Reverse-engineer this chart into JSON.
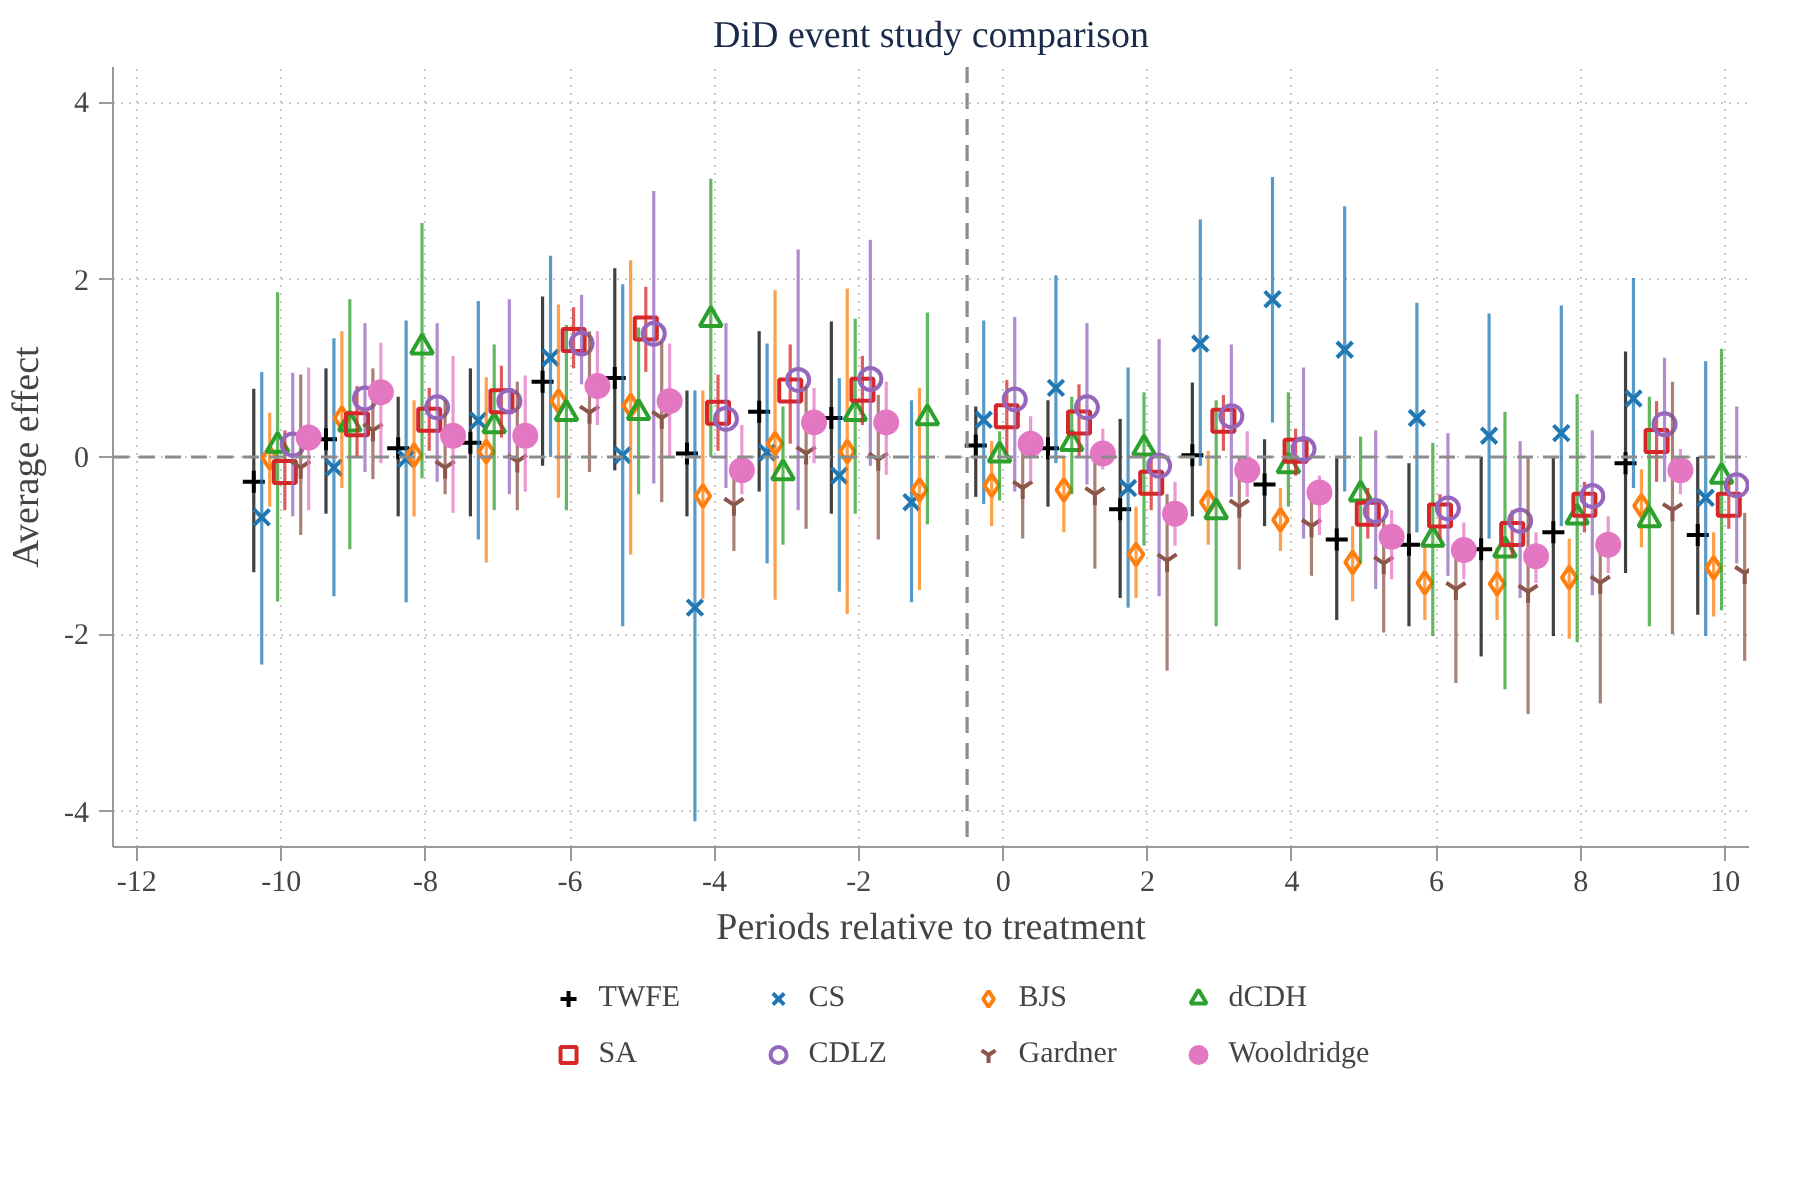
{
  "chart_data": {
    "type": "scatter",
    "title": "DiD event study comparison",
    "xlabel": "Periods relative to treatment",
    "ylabel": "Average effect",
    "xlim": [
      -12.33,
      10.33
    ],
    "ylim": [
      -4.4,
      4.4
    ],
    "xticks": [
      -12,
      -10,
      -8,
      -6,
      -4,
      -2,
      0,
      2,
      4,
      6,
      8,
      10
    ],
    "yticks": [
      -4,
      -2,
      0,
      2,
      4
    ],
    "grid": true,
    "legend": "bottom",
    "ref_lines": [
      {
        "axis": "y",
        "value": 0,
        "color": "#8c8c8c",
        "line_style": "dashed"
      },
      {
        "axis": "x",
        "value": -0.5,
        "color": "#8c8c8c",
        "line_style": "dashed"
      }
    ],
    "series": [
      {
        "name": "TWFE",
        "color": "#000000",
        "marker": "plus",
        "x": [
          -10.38,
          -9.38,
          -8.38,
          -7.38,
          -6.38,
          -5.38,
          -4.38,
          -3.38,
          -2.38,
          -0.38,
          0.62,
          1.62,
          2.62,
          3.62,
          4.62,
          5.62,
          6.62,
          7.62,
          8.62,
          9.62
        ],
        "values": [
          -0.28,
          0.2,
          0.1,
          0.16,
          0.85,
          0.89,
          0.04,
          0.51,
          0.44,
          0.13,
          0.1,
          -0.59,
          0.02,
          -0.31,
          -0.93,
          -0.99,
          -1.04,
          -0.85,
          -0.07,
          -0.88
        ],
        "errors": [
          [
            -1.3,
            0.77
          ],
          [
            -0.64,
            1.0
          ],
          [
            -0.67,
            0.68
          ],
          [
            -0.67,
            1.0
          ],
          [
            -0.1,
            1.81
          ],
          [
            -0.15,
            2.13
          ],
          [
            -0.67,
            0.75
          ],
          [
            -0.39,
            1.42
          ],
          [
            -0.64,
            1.53
          ],
          [
            -0.45,
            0.57
          ],
          [
            -0.56,
            0.64
          ],
          [
            -1.59,
            0.43
          ],
          [
            -0.67,
            0.84
          ],
          [
            -0.78,
            0.2
          ],
          [
            -1.84,
            -0.01
          ],
          [
            -1.91,
            -0.07
          ],
          [
            -2.25,
            0.0
          ],
          [
            -2.02,
            0.0
          ],
          [
            -1.31,
            1.19
          ],
          [
            -1.78,
            0.0
          ]
        ]
      },
      {
        "name": "CS",
        "color": "#1f77b4",
        "marker": "x",
        "x": [
          -10.27,
          -9.27,
          -8.27,
          -7.27,
          -6.27,
          -5.27,
          -4.27,
          -3.27,
          -2.27,
          -1.27,
          -0.27,
          0.73,
          1.73,
          2.73,
          3.73,
          4.73,
          5.73,
          6.73,
          7.73,
          8.73,
          9.73
        ],
        "values": [
          -0.68,
          -0.12,
          -0.02,
          0.41,
          1.12,
          0.02,
          -1.7,
          0.05,
          -0.21,
          -0.51,
          0.42,
          0.78,
          -0.35,
          1.28,
          1.78,
          1.21,
          0.44,
          0.24,
          0.27,
          0.66,
          -0.46
        ],
        "errors": [
          [
            -2.34,
            0.96
          ],
          [
            -1.57,
            1.34
          ],
          [
            -1.64,
            1.54
          ],
          [
            -0.93,
            1.76
          ],
          [
            0.0,
            2.27
          ],
          [
            -1.91,
            1.95
          ],
          [
            -4.11,
            0.75
          ],
          [
            -1.2,
            1.28
          ],
          [
            -1.52,
            0.89
          ],
          [
            -1.64,
            0.64
          ],
          [
            -0.53,
            1.54
          ],
          [
            -0.07,
            2.05
          ],
          [
            -1.7,
            1.01
          ],
          [
            -0.1,
            2.68
          ],
          [
            0.39,
            3.16
          ],
          [
            -0.39,
            2.83
          ],
          [
            -0.85,
            1.74
          ],
          [
            -0.92,
            1.62
          ],
          [
            -0.78,
            1.71
          ],
          [
            -0.35,
            2.02
          ],
          [
            -2.02,
            1.08
          ]
        ]
      },
      {
        "name": "BJS",
        "color": "#ff7f0e",
        "marker": "diamond",
        "x": [
          -10.16,
          -9.16,
          -8.16,
          -7.16,
          -6.16,
          -5.16,
          -4.16,
          -3.16,
          -2.16,
          -1.16,
          -0.16,
          0.84,
          1.84,
          2.84,
          3.84,
          4.84,
          5.84,
          6.84,
          7.84,
          8.84,
          9.84
        ],
        "values": [
          -0.01,
          0.44,
          0.02,
          0.06,
          0.63,
          0.58,
          -0.44,
          0.15,
          0.06,
          -0.37,
          -0.32,
          -0.37,
          -1.1,
          -0.51,
          -0.71,
          -1.19,
          -1.42,
          -1.43,
          -1.36,
          -0.55,
          -1.25
        ],
        "errors": [
          [
            -0.56,
            0.5
          ],
          [
            -0.35,
            1.42
          ],
          [
            -0.67,
            0.64
          ],
          [
            -1.19,
            0.9
          ],
          [
            -0.46,
            1.72
          ],
          [
            -1.1,
            2.22
          ],
          [
            -1.6,
            0.75
          ],
          [
            -1.61,
            1.88
          ],
          [
            -1.77,
            1.9
          ],
          [
            -1.5,
            0.78
          ],
          [
            -0.78,
            0.18
          ],
          [
            -0.85,
            0.0
          ],
          [
            -1.59,
            -0.56
          ],
          [
            -0.99,
            0.07
          ],
          [
            -1.06,
            -0.35
          ],
          [
            -1.63,
            -0.78
          ],
          [
            -1.84,
            -0.99
          ],
          [
            -1.84,
            -1.02
          ],
          [
            -2.05,
            -0.92
          ],
          [
            -1.02,
            -0.14
          ],
          [
            -1.8,
            -0.85
          ]
        ]
      },
      {
        "name": "dCDH",
        "color": "#2ca02c",
        "marker": "triangle",
        "x": [
          -10.05,
          -9.05,
          -8.05,
          -7.05,
          -6.05,
          -5.05,
          -4.05,
          -3.05,
          -2.05,
          -1.05,
          -0.05,
          0.95,
          1.95,
          2.95,
          3.95,
          4.95,
          5.95,
          6.95,
          7.95,
          8.95,
          9.95
        ],
        "values": [
          0.13,
          0.37,
          1.24,
          0.35,
          0.49,
          0.5,
          1.55,
          -0.18,
          0.49,
          0.44,
          0.02,
          0.15,
          0.1,
          -0.62,
          -0.1,
          -0.42,
          -0.93,
          -1.05,
          -0.68,
          -0.71,
          -0.22
        ],
        "errors": [
          [
            -1.63,
            1.86
          ],
          [
            -1.04,
            1.78
          ],
          [
            -0.24,
            2.64
          ],
          [
            -0.6,
            1.27
          ],
          [
            -0.6,
            1.49
          ],
          [
            -0.42,
            1.46
          ],
          [
            0.0,
            3.14
          ],
          [
            -0.99,
            0.57
          ],
          [
            -0.64,
            1.56
          ],
          [
            -0.76,
            1.63
          ],
          [
            -0.49,
            0.29
          ],
          [
            -0.42,
            0.68
          ],
          [
            -1.0,
            0.73
          ],
          [
            -1.91,
            0.64
          ],
          [
            -0.56,
            0.73
          ],
          [
            -1.2,
            0.23
          ],
          [
            -2.02,
            0.16
          ],
          [
            -2.62,
            0.51
          ],
          [
            -2.09,
            0.71
          ],
          [
            -1.91,
            0.68
          ],
          [
            -1.73,
            1.22
          ]
        ]
      },
      {
        "name": "SA",
        "color": "#d62728",
        "marker": "square",
        "x": [
          -9.95,
          -8.95,
          -7.95,
          -6.95,
          -5.95,
          -4.95,
          -3.95,
          -2.95,
          -1.95,
          0.05,
          1.05,
          2.05,
          3.05,
          4.05,
          5.05,
          6.05,
          7.05,
          8.05,
          9.05,
          10.05
        ],
        "values": [
          -0.17,
          0.37,
          0.42,
          0.63,
          1.32,
          1.45,
          0.5,
          0.75,
          0.76,
          0.46,
          0.39,
          -0.29,
          0.41,
          0.07,
          -0.64,
          -0.66,
          -0.87,
          -0.54,
          0.18,
          -0.54
        ],
        "errors": [
          [
            -0.6,
            0.3
          ],
          [
            0.0,
            0.8
          ],
          [
            0.07,
            0.78
          ],
          [
            0.22,
            1.03
          ],
          [
            1.0,
            1.69
          ],
          [
            0.96,
            1.92
          ],
          [
            0.07,
            0.93
          ],
          [
            0.15,
            1.27
          ],
          [
            0.36,
            1.14
          ],
          [
            0.04,
            0.87
          ],
          [
            0.0,
            0.82
          ],
          [
            -0.6,
            0.0
          ],
          [
            0.07,
            0.7
          ],
          [
            -0.21,
            0.32
          ],
          [
            -0.92,
            -0.35
          ],
          [
            -0.92,
            -0.42
          ],
          [
            -1.13,
            -0.6
          ],
          [
            -0.85,
            -0.28
          ],
          [
            -0.28,
            0.63
          ],
          [
            -0.81,
            -0.25
          ]
        ]
      },
      {
        "name": "CDLZ",
        "color": "#9467bd",
        "marker": "circle",
        "x": [
          -9.84,
          -8.84,
          -7.84,
          -6.84,
          -5.84,
          -4.84,
          -3.84,
          -2.84,
          -1.84,
          0.16,
          1.16,
          2.16,
          3.16,
          4.16,
          5.16,
          6.16,
          7.16,
          8.16,
          9.16,
          10.16
        ],
        "values": [
          0.14,
          0.66,
          0.56,
          0.63,
          1.28,
          1.39,
          0.43,
          0.87,
          0.88,
          0.65,
          0.56,
          -0.1,
          0.46,
          0.09,
          -0.61,
          -0.58,
          -0.72,
          -0.44,
          0.37,
          -0.32
        ],
        "errors": [
          [
            -0.67,
            0.95
          ],
          [
            -0.17,
            1.51
          ],
          [
            -0.28,
            1.51
          ],
          [
            -0.42,
            1.78
          ],
          [
            0.82,
            1.83
          ],
          [
            -0.3,
            3.0
          ],
          [
            -0.35,
            1.51
          ],
          [
            -0.6,
            2.34
          ],
          [
            -0.1,
            2.45
          ],
          [
            -0.39,
            1.58
          ],
          [
            -0.31,
            1.51
          ],
          [
            -1.57,
            1.33
          ],
          [
            -0.45,
            1.27
          ],
          [
            -0.92,
            1.01
          ],
          [
            -1.49,
            0.3
          ],
          [
            -1.34,
            0.27
          ],
          [
            -1.59,
            0.18
          ],
          [
            -1.56,
            0.3
          ],
          [
            -0.28,
            1.12
          ],
          [
            -1.2,
            0.57
          ]
        ]
      },
      {
        "name": "Gardner",
        "color": "#8c564b",
        "x": [
          -9.73,
          -8.73,
          -7.73,
          -6.73,
          -5.73,
          -4.73,
          -3.73,
          -2.73,
          -1.73,
          0.27,
          1.27,
          2.27,
          3.27,
          4.27,
          5.27,
          6.27,
          7.27,
          8.27,
          9.27,
          10.27
        ],
        "values": [
          -0.12,
          0.3,
          -0.12,
          -0.05,
          0.5,
          0.44,
          -0.54,
          0.04,
          -0.03,
          -0.35,
          -0.42,
          -1.17,
          -0.56,
          -0.78,
          -1.2,
          -1.49,
          -1.52,
          -1.42,
          -0.6,
          -1.31
        ],
        "errors": [
          [
            -0.88,
            0.93
          ],
          [
            -0.25,
            1.0
          ],
          [
            -0.42,
            0.64
          ],
          [
            -0.6,
            0.85
          ],
          [
            -0.17,
            1.42
          ],
          [
            -0.51,
            1.3
          ],
          [
            -1.06,
            -0.05
          ],
          [
            -0.81,
            0.8
          ],
          [
            -0.93,
            0.7
          ],
          [
            -0.92,
            0.07
          ],
          [
            -1.26,
            0.0
          ],
          [
            -2.41,
            -0.42
          ],
          [
            -1.27,
            0.0
          ],
          [
            -1.34,
            -0.42
          ],
          [
            -1.98,
            -0.71
          ],
          [
            -2.55,
            -1.06
          ],
          [
            -2.9,
            0.0
          ],
          [
            -2.78,
            -0.92
          ],
          [
            -2.0,
            0.85
          ],
          [
            -2.3,
            -0.63
          ]
        ]
      },
      {
        "name": "Wooldridge",
        "color": "#e377c2",
        "marker": "dot",
        "x": [
          -9.62,
          -8.62,
          -7.62,
          -6.62,
          -5.62,
          -4.62,
          -3.62,
          -2.62,
          -1.62,
          0.38,
          1.38,
          2.38,
          3.38,
          4.38,
          5.38,
          6.38,
          7.38,
          8.38,
          9.38
        ],
        "values": [
          0.22,
          0.73,
          0.24,
          0.24,
          0.8,
          0.63,
          -0.15,
          0.39,
          0.39,
          0.15,
          0.04,
          -0.64,
          -0.15,
          -0.4,
          -0.9,
          -1.05,
          -1.12,
          -0.99,
          -0.15
        ],
        "errors": [
          [
            -0.6,
            1.01
          ],
          [
            -0.07,
            1.29
          ],
          [
            -0.63,
            1.14
          ],
          [
            -0.39,
            0.92
          ],
          [
            0.36,
            1.42
          ],
          [
            0.0,
            1.28
          ],
          [
            -0.42,
            0.36
          ],
          [
            -0.07,
            0.78
          ],
          [
            -0.2,
            0.85
          ],
          [
            -0.28,
            0.46
          ],
          [
            -0.14,
            0.32
          ],
          [
            -1.0,
            -0.28
          ],
          [
            -0.45,
            0.29
          ],
          [
            -0.88,
            -0.21
          ],
          [
            -1.38,
            -0.6
          ],
          [
            -1.38,
            -0.74
          ],
          [
            -1.42,
            -0.85
          ],
          [
            -1.31,
            -0.67
          ],
          [
            -0.42,
            0.09
          ]
        ]
      }
    ]
  }
}
